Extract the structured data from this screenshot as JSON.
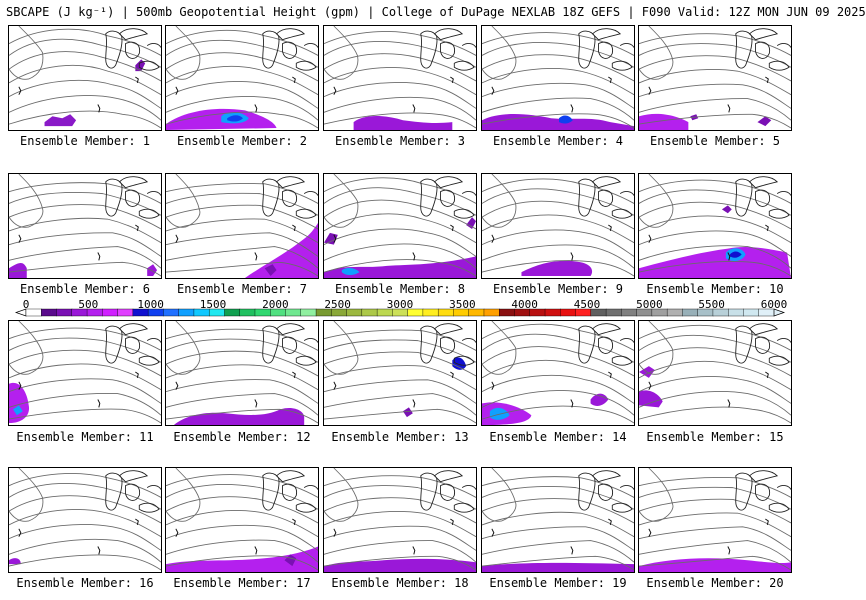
{
  "title": "SBCAPE (J kg⁻¹) | 500mb Geopotential Height (gpm) | College of DuPage NEXLAB 18Z GEFS | F090 Valid: 12Z MON JUN 09 2025",
  "members": [
    "Ensemble Member: 1",
    "Ensemble Member: 2",
    "Ensemble Member: 3",
    "Ensemble Member: 4",
    "Ensemble Member: 5",
    "Ensemble Member: 6",
    "Ensemble Member: 7",
    "Ensemble Member: 8",
    "Ensemble Member: 9",
    "Ensemble Member: 10",
    "Ensemble Member: 11",
    "Ensemble Member: 12",
    "Ensemble Member: 13",
    "Ensemble Member: 14",
    "Ensemble Member: 15",
    "Ensemble Member: 16",
    "Ensemble Member: 17",
    "Ensemble Member: 18",
    "Ensemble Member: 19",
    "Ensemble Member: 20"
  ],
  "colorbar": {
    "ticks": [
      "0",
      "500",
      "1000",
      "1500",
      "2000",
      "2500",
      "3000",
      "3500",
      "4000",
      "4500",
      "5000",
      "5500",
      "6000"
    ],
    "colors": [
      "#ffffff",
      "#5a0a8c",
      "#7a10b4",
      "#9a18d8",
      "#b420ee",
      "#d020ff",
      "#e040ff",
      "#1010d0",
      "#1040f0",
      "#2070ff",
      "#10a0ff",
      "#10c8ff",
      "#20e8f0",
      "#10a050",
      "#20c060",
      "#30d870",
      "#50e080",
      "#70e890",
      "#90f0a0",
      "#789a30",
      "#8aa838",
      "#9cb840",
      "#acc848",
      "#bcd850",
      "#cce058",
      "#ffff30",
      "#ffee20",
      "#ffdd10",
      "#ffcc00",
      "#ffb800",
      "#ffa000",
      "#8a1010",
      "#a01010",
      "#b81010",
      "#d01010",
      "#e81010",
      "#ff2020",
      "#606060",
      "#707070",
      "#808080",
      "#909090",
      "#a0a0a0",
      "#b0b0b0",
      "#98b0b8",
      "#a8c0c8",
      "#b8d0d8",
      "#c8e0e8",
      "#d0e8f0",
      "#e0f0f8"
    ]
  }
}
